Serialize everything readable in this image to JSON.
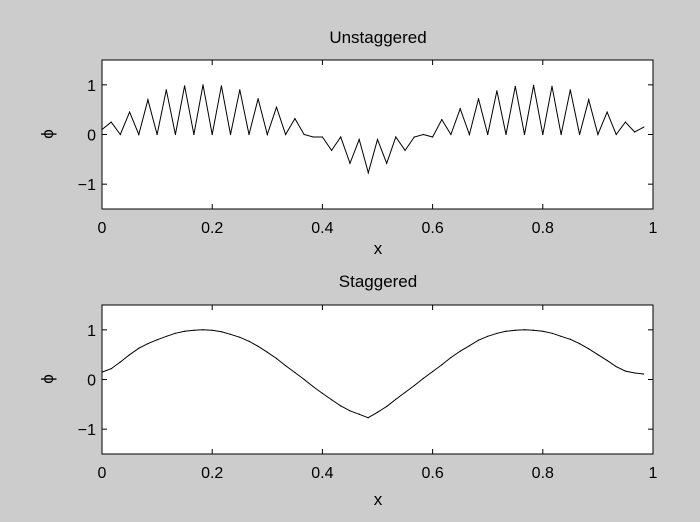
{
  "figure": {
    "background": "#cccccc",
    "axes_background": "#ffffff",
    "line_color": "#000000"
  },
  "chart_data": [
    {
      "type": "line",
      "title": "Unstaggered",
      "xlabel": "x",
      "ylabel": "ϕ",
      "xlim": [
        0,
        1
      ],
      "ylim": [
        -1.5,
        1.5
      ],
      "xticks": [
        0,
        0.2,
        0.4,
        0.6,
        0.8,
        1
      ],
      "xtick_labels": [
        "0",
        "0.2",
        "0.4",
        "0.6",
        "0.8",
        "1"
      ],
      "yticks": [
        -1,
        0,
        1
      ],
      "ytick_labels": [
        "−1",
        "0",
        "1"
      ],
      "grid": false,
      "legend": "none",
      "series": [
        {
          "x": [
            0.0,
            0.0167,
            0.0333,
            0.05,
            0.0667,
            0.0833,
            0.1,
            0.1167,
            0.1333,
            0.15,
            0.1667,
            0.1833,
            0.2,
            0.2167,
            0.2333,
            0.25,
            0.2667,
            0.2833,
            0.3,
            0.3167,
            0.3333,
            0.35,
            0.3667,
            0.3833,
            0.4,
            0.4167,
            0.4333,
            0.45,
            0.4667,
            0.4833,
            0.5,
            0.5167,
            0.5333,
            0.55,
            0.5667,
            0.5833,
            0.6,
            0.6167,
            0.6333,
            0.65,
            0.6667,
            0.6833,
            0.7,
            0.7167,
            0.7333,
            0.75,
            0.7667,
            0.7833,
            0.8,
            0.8167,
            0.8333,
            0.85,
            0.8667,
            0.8833,
            0.9,
            0.9167,
            0.9333,
            0.95,
            0.9667,
            0.9833
          ],
          "y": [
            0.1,
            0.25,
            0.0,
            0.45,
            0.0,
            0.7,
            0.0,
            0.9,
            0.0,
            0.98,
            0.0,
            1.0,
            0.0,
            0.98,
            0.0,
            0.9,
            0.0,
            0.72,
            0.0,
            0.55,
            0.0,
            0.32,
            0.0,
            -0.05,
            -0.05,
            -0.32,
            -0.05,
            -0.58,
            -0.1,
            -0.77,
            -0.1,
            -0.58,
            -0.05,
            -0.32,
            -0.05,
            0.0,
            -0.05,
            0.3,
            0.0,
            0.52,
            0.0,
            0.72,
            0.0,
            0.88,
            0.0,
            0.97,
            0.0,
            0.99,
            0.0,
            0.97,
            0.0,
            0.9,
            0.0,
            0.7,
            0.0,
            0.45,
            0.0,
            0.25,
            0.05,
            0.15
          ]
        }
      ]
    },
    {
      "type": "line",
      "title": "Staggered",
      "xlabel": "x",
      "ylabel": "ϕ",
      "xlim": [
        0,
        1
      ],
      "ylim": [
        -1.5,
        1.5
      ],
      "xticks": [
        0,
        0.2,
        0.4,
        0.6,
        0.8,
        1
      ],
      "xtick_labels": [
        "0",
        "0.2",
        "0.4",
        "0.6",
        "0.8",
        "1"
      ],
      "yticks": [
        -1,
        0,
        1
      ],
      "ytick_labels": [
        "−1",
        "0",
        "1"
      ],
      "grid": false,
      "legend": "none",
      "series": [
        {
          "x": [
            0.0,
            0.017,
            0.033,
            0.05,
            0.067,
            0.083,
            0.1,
            0.117,
            0.133,
            0.15,
            0.167,
            0.183,
            0.2,
            0.217,
            0.233,
            0.25,
            0.267,
            0.283,
            0.3,
            0.317,
            0.333,
            0.35,
            0.367,
            0.383,
            0.4,
            0.417,
            0.433,
            0.45,
            0.467,
            0.483,
            0.5,
            0.517,
            0.533,
            0.55,
            0.567,
            0.583,
            0.6,
            0.617,
            0.633,
            0.65,
            0.667,
            0.683,
            0.7,
            0.717,
            0.733,
            0.75,
            0.767,
            0.783,
            0.8,
            0.817,
            0.833,
            0.85,
            0.867,
            0.883,
            0.9,
            0.917,
            0.933,
            0.95,
            0.967,
            0.983
          ],
          "y": [
            0.15,
            0.22,
            0.35,
            0.5,
            0.63,
            0.72,
            0.8,
            0.87,
            0.93,
            0.97,
            0.99,
            1.0,
            0.99,
            0.96,
            0.91,
            0.85,
            0.77,
            0.67,
            0.55,
            0.42,
            0.28,
            0.14,
            0.0,
            -0.14,
            -0.28,
            -0.41,
            -0.53,
            -0.63,
            -0.7,
            -0.77,
            -0.66,
            -0.54,
            -0.4,
            -0.26,
            -0.12,
            0.02,
            0.16,
            0.3,
            0.44,
            0.57,
            0.68,
            0.79,
            0.87,
            0.93,
            0.97,
            0.99,
            1.0,
            0.99,
            0.97,
            0.93,
            0.87,
            0.81,
            0.72,
            0.62,
            0.5,
            0.38,
            0.26,
            0.17,
            0.13,
            0.11
          ]
        }
      ]
    }
  ]
}
